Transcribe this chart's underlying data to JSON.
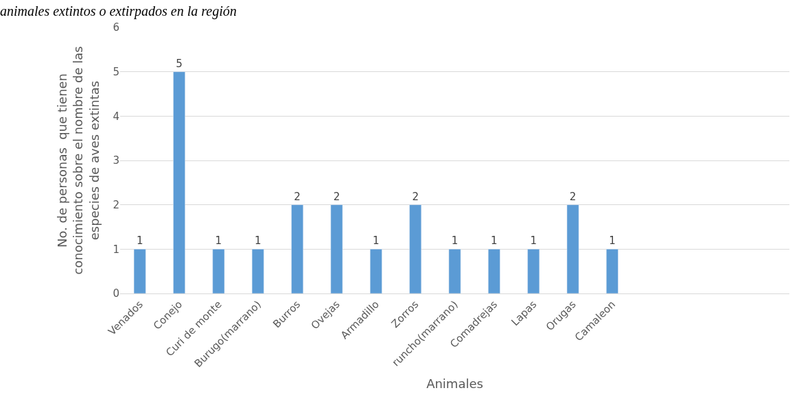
{
  "chart_data": {
    "type": "bar",
    "title": "animales extintos o extirpados en la región",
    "xlabel": "Animales",
    "ylabel": "No. de personas  que tienen\nconocimiento sobre el nombre de las\nespecies de aves extintas",
    "categories": [
      "Venados",
      "Conejo",
      "Curi de monte",
      "Burugo(marrano)",
      "Burros",
      "Ovejas",
      "Armadillo",
      "Zorros",
      "runcho(marrano)",
      "Comadrejas",
      "Lapas",
      "Orugas",
      "Camaleon",
      null,
      null,
      null,
      null
    ],
    "values": [
      1,
      5,
      1,
      1,
      2,
      2,
      1,
      2,
      1,
      1,
      1,
      2,
      1,
      null,
      null,
      null,
      null
    ],
    "color": "#5b9bd5",
    "ylim": [
      0,
      6
    ],
    "yticks": [
      0,
      1,
      2,
      3,
      4,
      5,
      6
    ],
    "grid": "y",
    "data_labels": true,
    "legend": false
  }
}
